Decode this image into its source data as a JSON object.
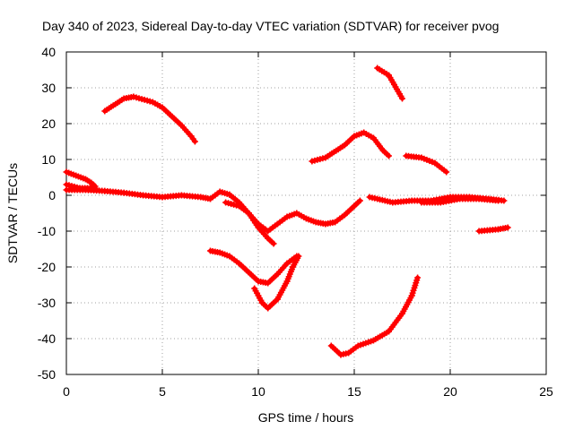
{
  "chart_data": {
    "type": "scatter",
    "title": "Day 340 of 2023, Sidereal Day-to-day VTEC variation (SDTVAR) for receiver pvog",
    "xlabel": "GPS time / hours",
    "ylabel": "SDTVAR / TECUs",
    "xlim": [
      0,
      25
    ],
    "ylim": [
      -50,
      40
    ],
    "x_ticks": [
      0,
      5,
      10,
      15,
      20,
      25
    ],
    "y_ticks": [
      -50,
      -40,
      -30,
      -20,
      -10,
      0,
      10,
      20,
      30,
      40
    ],
    "grid": true,
    "marker": "plus",
    "color": "#ff0000",
    "series": [
      {
        "name": "seg1",
        "points": [
          [
            0,
            6.5
          ],
          [
            0.5,
            5.5
          ],
          [
            1,
            4.5
          ],
          [
            1.3,
            3.5
          ],
          [
            1.5,
            2.5
          ]
        ]
      },
      {
        "name": "seg2",
        "points": [
          [
            0,
            1.5
          ],
          [
            1,
            1.5
          ],
          [
            2,
            1.2
          ],
          [
            3,
            0.7
          ],
          [
            4,
            0
          ],
          [
            5,
            -0.5
          ],
          [
            6,
            0
          ],
          [
            7,
            -0.5
          ],
          [
            7.5,
            -1
          ],
          [
            8,
            1
          ],
          [
            8.5,
            0.2
          ],
          [
            9,
            -2
          ],
          [
            9.5,
            -5
          ],
          [
            10,
            -8
          ],
          [
            10.5,
            -10
          ],
          [
            11,
            -8
          ],
          [
            11.5,
            -6
          ],
          [
            12,
            -5
          ],
          [
            12.5,
            -6.5
          ],
          [
            13,
            -7.5
          ],
          [
            13.5,
            -8
          ],
          [
            14,
            -7.5
          ],
          [
            14.5,
            -5.5
          ],
          [
            15,
            -3
          ],
          [
            15.3,
            -1.5
          ]
        ]
      },
      {
        "name": "seg3",
        "points": [
          [
            0,
            3
          ],
          [
            0.7,
            2
          ],
          [
            1.5,
            2
          ]
        ]
      },
      {
        "name": "seg4",
        "points": [
          [
            2,
            23.5
          ],
          [
            3,
            27
          ],
          [
            3.5,
            27.5
          ],
          [
            4.5,
            26
          ],
          [
            5,
            24.5
          ],
          [
            5.5,
            22
          ],
          [
            6,
            19.5
          ],
          [
            6.5,
            16.5
          ],
          [
            6.7,
            15
          ]
        ]
      },
      {
        "name": "seg5",
        "points": [
          [
            7.5,
            -15.5
          ],
          [
            8,
            -16
          ],
          [
            8.5,
            -17
          ],
          [
            9,
            -19
          ],
          [
            9.5,
            -21.5
          ],
          [
            10,
            -24
          ],
          [
            10.5,
            -24.5
          ],
          [
            11,
            -22
          ],
          [
            11.5,
            -19
          ],
          [
            12,
            -17
          ]
        ]
      },
      {
        "name": "seg6",
        "points": [
          [
            8.3,
            -2
          ],
          [
            9,
            -3
          ],
          [
            9.5,
            -5
          ],
          [
            10,
            -9
          ],
          [
            10.5,
            -12
          ],
          [
            10.8,
            -13.5
          ]
        ]
      },
      {
        "name": "seg7",
        "points": [
          [
            9.8,
            -26
          ],
          [
            10.2,
            -30
          ],
          [
            10.5,
            -31.5
          ],
          [
            11,
            -29
          ],
          [
            11.5,
            -24
          ],
          [
            11.8,
            -20
          ],
          [
            12.1,
            -17
          ]
        ]
      },
      {
        "name": "seg8",
        "points": [
          [
            12.8,
            9.5
          ],
          [
            13.5,
            10.5
          ],
          [
            14.5,
            14
          ],
          [
            15,
            16.5
          ],
          [
            15.5,
            17.5
          ],
          [
            16,
            16
          ],
          [
            16.5,
            12.5
          ],
          [
            16.8,
            11
          ]
        ]
      },
      {
        "name": "seg9",
        "points": [
          [
            16.2,
            35.5
          ],
          [
            16.8,
            33.5
          ],
          [
            17.5,
            27
          ]
        ]
      },
      {
        "name": "seg10",
        "points": [
          [
            17.7,
            11
          ],
          [
            18.5,
            10.5
          ],
          [
            19.2,
            9
          ],
          [
            19.8,
            6.5
          ]
        ]
      },
      {
        "name": "seg11",
        "points": [
          [
            15.8,
            -0.5
          ],
          [
            17,
            -2
          ],
          [
            18,
            -1.5
          ],
          [
            19,
            -1.5
          ],
          [
            20,
            -0.5
          ],
          [
            21,
            -0.5
          ],
          [
            22,
            -1
          ],
          [
            22.8,
            -1.5
          ]
        ]
      },
      {
        "name": "seg12",
        "points": [
          [
            18.5,
            -2
          ],
          [
            19.5,
            -2
          ],
          [
            20.5,
            -1
          ],
          [
            21.5,
            -1
          ],
          [
            22.5,
            -1.5
          ]
        ]
      },
      {
        "name": "seg13",
        "points": [
          [
            21.5,
            -10
          ],
          [
            22.5,
            -9.5
          ],
          [
            23,
            -9
          ]
        ]
      },
      {
        "name": "seg14",
        "points": [
          [
            13.8,
            -42
          ],
          [
            14.3,
            -44.5
          ],
          [
            14.7,
            -44
          ],
          [
            15.2,
            -42
          ],
          [
            16,
            -40.5
          ],
          [
            16.8,
            -38
          ],
          [
            17.5,
            -33
          ],
          [
            18,
            -28
          ],
          [
            18.3,
            -23
          ]
        ]
      }
    ]
  }
}
